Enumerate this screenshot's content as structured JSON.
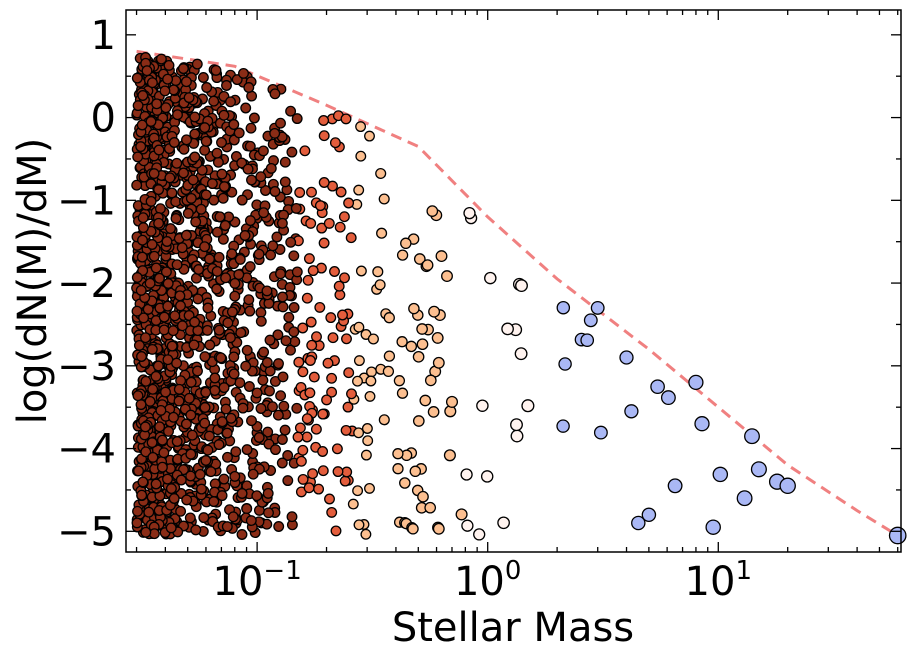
{
  "chart_data": {
    "type": "scatter",
    "title": "",
    "xlabel": "Stellar Mass",
    "ylabel": "log(dN(M)/dM)",
    "xscale": "log",
    "xlim": [
      0.027,
      62
    ],
    "ylim": [
      -5.25,
      1.3
    ],
    "x_ticks": [
      {
        "value": 0.1,
        "base": "10",
        "exp": "−1"
      },
      {
        "value": 1,
        "base": "10",
        "exp": "0"
      },
      {
        "value": 10,
        "base": "10",
        "exp": "1"
      }
    ],
    "y_ticks": [
      {
        "value": 1,
        "label": "1"
      },
      {
        "value": 0,
        "label": "0"
      },
      {
        "value": -1,
        "label": "−1"
      },
      {
        "value": -2,
        "label": "−2"
      },
      {
        "value": -3,
        "label": "−3"
      },
      {
        "value": -4,
        "label": "−4"
      },
      {
        "value": -5,
        "label": "−5"
      }
    ],
    "grid": false,
    "legend": "none",
    "envelope": {
      "style": "dashed",
      "color": "#f08080",
      "x": [
        0.03,
        0.08,
        0.2,
        0.5,
        1.0,
        2.0,
        5.0,
        10.0,
        20.0,
        40.0,
        60.0
      ],
      "y": [
        0.8,
        0.62,
        0.15,
        -0.35,
        -1.2,
        -1.95,
        -2.8,
        -3.5,
        -4.2,
        -4.75,
        -5.05
      ]
    },
    "color_bins": [
      {
        "max_mass": 0.15,
        "color": "#8a2c16"
      },
      {
        "max_mass": 0.26,
        "color": "#e35d3c"
      },
      {
        "max_mass": 0.8,
        "color": "#fcbf90"
      },
      {
        "max_mass": 1.8,
        "color": "#fff3ef"
      },
      {
        "max_mass": 1000,
        "color": "#aab8f5"
      }
    ],
    "cloud": {
      "n_points": 1700,
      "x_range": [
        0.03,
        62
      ],
      "y_min": -5.05,
      "note": "points sampled between y_min and the envelope, density falling with mass"
    },
    "points": [
      {
        "x": 60,
        "y": -5.05
      },
      {
        "x": 14,
        "y": -3.85
      },
      {
        "x": 15,
        "y": -4.25
      },
      {
        "x": 18,
        "y": -4.4
      },
      {
        "x": 20,
        "y": -4.45
      },
      {
        "x": 13,
        "y": -4.6
      },
      {
        "x": 9.5,
        "y": -4.95
      },
      {
        "x": 8.5,
        "y": -3.7
      },
      {
        "x": 8,
        "y": -3.2
      },
      {
        "x": 6.5,
        "y": -4.45
      },
      {
        "x": 5,
        "y": -4.8
      },
      {
        "x": 4.5,
        "y": -4.9
      },
      {
        "x": 4.2,
        "y": -3.55
      },
      {
        "x": 4,
        "y": -2.9
      },
      {
        "x": 3,
        "y": -2.3
      },
      {
        "x": 2.8,
        "y": -2.45
      }
    ]
  }
}
